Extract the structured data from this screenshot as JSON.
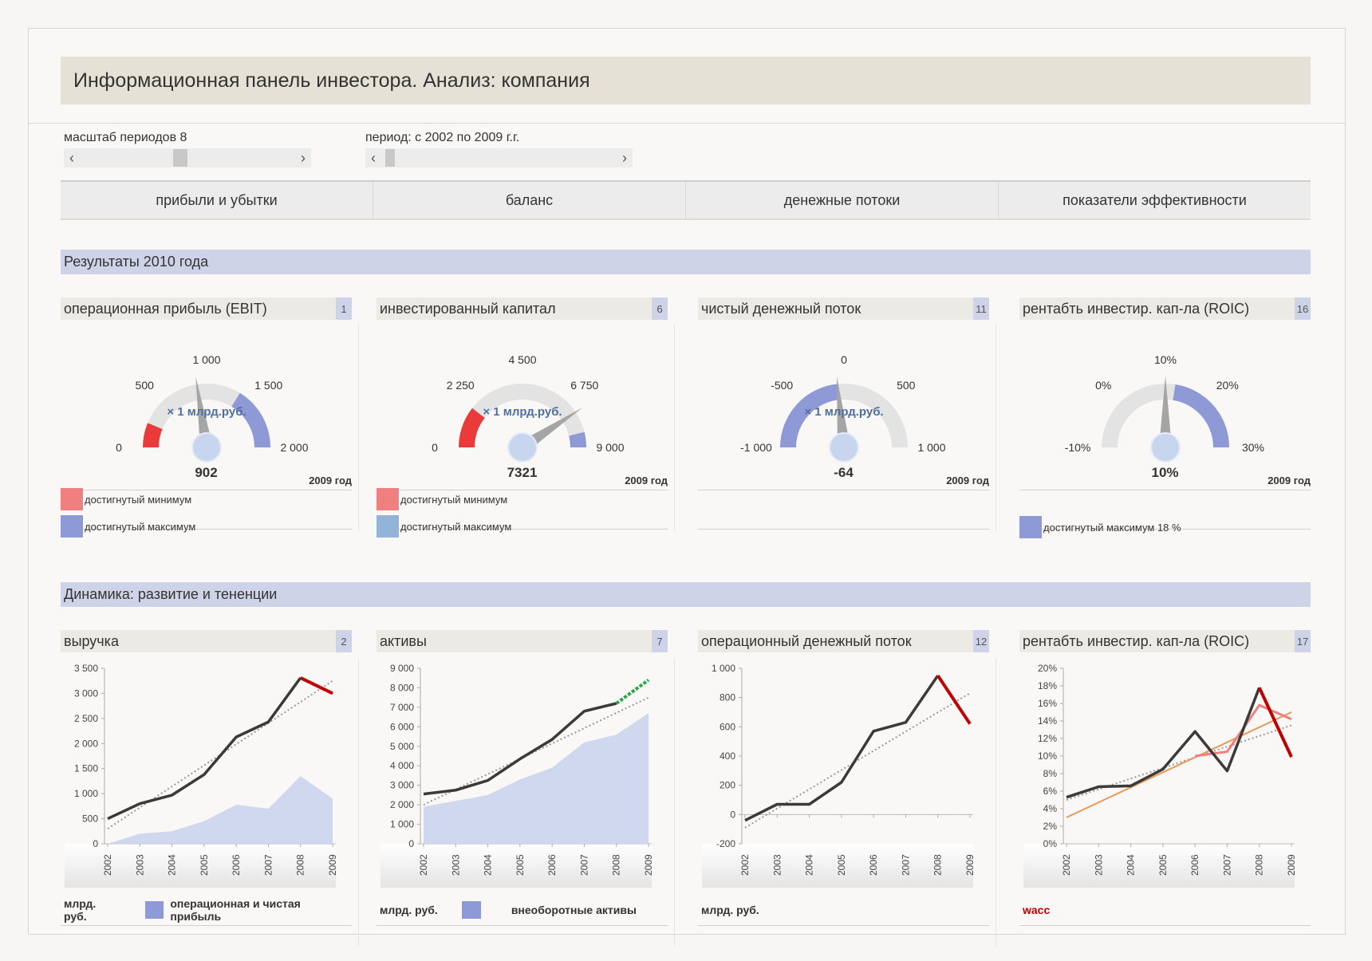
{
  "title": "Информационная панель инвестора. Анализ: компания",
  "controls": {
    "scale_label": "масштаб периодов 8",
    "period_label": "период: с 2002 по 2009 г.г.",
    "arrow_left": "‹",
    "arrow_right": "›"
  },
  "tabs": [
    "прибыли и убытки",
    "баланс",
    "денежные потоки",
    "показатели эффективности"
  ],
  "section_results": "Результаты 2010 года",
  "section_dynamics": "Динамика: развитие и тененции",
  "colors": {
    "min": "#f08080",
    "max_blue": "#8e9ad6",
    "max_lightblue": "#92b4d9",
    "accent_red": "#c00000",
    "area": "#c9d2ee"
  },
  "gauges": [
    {
      "title": "операционная прибыль (EBIT)",
      "num": "1",
      "ticks": [
        "0",
        "500",
        "1 000",
        "1 500",
        "2 000"
      ],
      "unit": "× 1  млрд.руб.",
      "value": "902",
      "year": "2009 год",
      "min": 0,
      "max": 2000,
      "val": 902,
      "red": [
        0,
        250
      ],
      "blue": [
        1350,
        2000
      ],
      "legend": [
        {
          "color": "#f08080",
          "text": "достигнутый минимум"
        },
        {
          "color": "#8e9ad6",
          "text": "достигнутый максимум"
        }
      ]
    },
    {
      "title": "инвестированный капитал",
      "num": "6",
      "ticks": [
        "0",
        "2 250",
        "4 500",
        "6 750",
        "9 000"
      ],
      "unit": "× 1  млрд.руб.",
      "value": "7321",
      "year": "2009 год",
      "min": 0,
      "max": 9000,
      "val": 7321,
      "red": [
        0,
        1900
      ],
      "blue": [
        8300,
        9000
      ],
      "legend": [
        {
          "color": "#f08080",
          "text": "достигнутый минимум"
        },
        {
          "color": "#92b4d9",
          "text": "достигнутый максимум"
        }
      ]
    },
    {
      "title": "чистый денежный поток",
      "num": "11",
      "ticks": [
        "-1 000",
        "-500",
        "0",
        "500",
        "1 000"
      ],
      "unit": "× 1  млрд.руб.",
      "value": "-64",
      "year": "2009 год",
      "min": -1000,
      "max": 1000,
      "val": -64,
      "red": null,
      "blue": [
        -1000,
        -64
      ],
      "legend": []
    },
    {
      "title": "рентабть инвестир. кап-ла (ROIC)",
      "num": "16",
      "ticks": [
        "-10%",
        "0%",
        "10%",
        "20%",
        "30%"
      ],
      "unit": "",
      "value": "10%",
      "year": "2009 год",
      "min": -10,
      "max": 30,
      "val": 10,
      "red": null,
      "blue": [
        12,
        30
      ],
      "legend": [
        {
          "color": "#8e9ad6",
          "text": "достигнутый максимум 18 %"
        }
      ]
    }
  ],
  "charts_meta": [
    {
      "title": "выручка",
      "num": "2",
      "footer_unit": "млрд. руб.",
      "footer_legend": "операционная и чистая прибыль",
      "footer_color": "#8e9ad6"
    },
    {
      "title": "активы",
      "num": "7",
      "footer_unit": "млрд. руб.",
      "footer_legend": "внеоборотные активы",
      "footer_color": "#8e9ad6"
    },
    {
      "title": "операционный денежный поток",
      "num": "12",
      "footer_unit": "млрд. руб.",
      "footer_legend": "",
      "footer_color": ""
    },
    {
      "title": "рентабть инвестир. кап-ла (ROIC)",
      "num": "17",
      "footer_unit": "",
      "footer_legend": "wacc",
      "footer_color": ""
    }
  ],
  "chart_data": [
    {
      "type": "line",
      "x": [
        "2002",
        "2003",
        "2004",
        "2005",
        "2006",
        "2007",
        "2008",
        "2009"
      ],
      "yticks": [
        "0",
        "500",
        "1 000",
        "1 500",
        "2 000",
        "2 500",
        "3 000",
        "3 500"
      ],
      "ylim": [
        0,
        3500
      ],
      "series": [
        {
          "values": [
            500,
            800,
            970,
            1380,
            2130,
            2430,
            3310,
            3000
          ]
        }
      ],
      "area": [
        0,
        200,
        250,
        450,
        780,
        700,
        1350,
        900
      ],
      "trend": [
        300,
        3250
      ],
      "highlight_last": "#c00000"
    },
    {
      "type": "line",
      "x": [
        "2002",
        "2003",
        "2004",
        "2005",
        "2006",
        "2007",
        "2008",
        "2009"
      ],
      "yticks": [
        "0",
        "1 000",
        "2 000",
        "3 000",
        "4 000",
        "5 000",
        "6 000",
        "7 000",
        "8 000",
        "9 000"
      ],
      "ylim": [
        0,
        9000
      ],
      "series": [
        {
          "values": [
            2550,
            2750,
            3250,
            4350,
            5350,
            6800,
            7200,
            8400
          ]
        }
      ],
      "area": [
        1900,
        2200,
        2500,
        3300,
        3900,
        5200,
        5600,
        6700
      ],
      "trend": [
        2000,
        7500
      ],
      "highlight_last": "#27a844"
    },
    {
      "type": "line",
      "x": [
        "2002",
        "2003",
        "2004",
        "2005",
        "2006",
        "2007",
        "2008",
        "2009"
      ],
      "yticks": [
        "-200",
        "0",
        "200",
        "400",
        "600",
        "800",
        "1 000"
      ],
      "ylim": [
        -200,
        1000
      ],
      "series": [
        {
          "values": [
            -40,
            70,
            70,
            220,
            570,
            630,
            950,
            620
          ]
        }
      ],
      "area": null,
      "trend": [
        -90,
        830
      ],
      "highlight_last": "#c00000"
    },
    {
      "type": "line",
      "x": [
        "2002",
        "2003",
        "2004",
        "2005",
        "2006",
        "2007",
        "2008",
        "2009"
      ],
      "yticks": [
        "0%",
        "2%",
        "4%",
        "6%",
        "8%",
        "10%",
        "12%",
        "14%",
        "16%",
        "18%",
        "20%"
      ],
      "ylim": [
        0,
        20
      ],
      "series": [
        {
          "values": [
            5.3,
            6.5,
            6.6,
            8.5,
            12.8,
            8.3,
            17.8,
            9.9
          ]
        },
        {
          "name": "wacc",
          "values": [
            null,
            null,
            null,
            null,
            10.0,
            10.5,
            15.8,
            14.2
          ],
          "color": "#f08080"
        }
      ],
      "area": null,
      "trend": [
        5.0,
        13.5
      ],
      "orange": [
        3.0,
        15.0
      ],
      "highlight_last": "#c00000"
    }
  ]
}
